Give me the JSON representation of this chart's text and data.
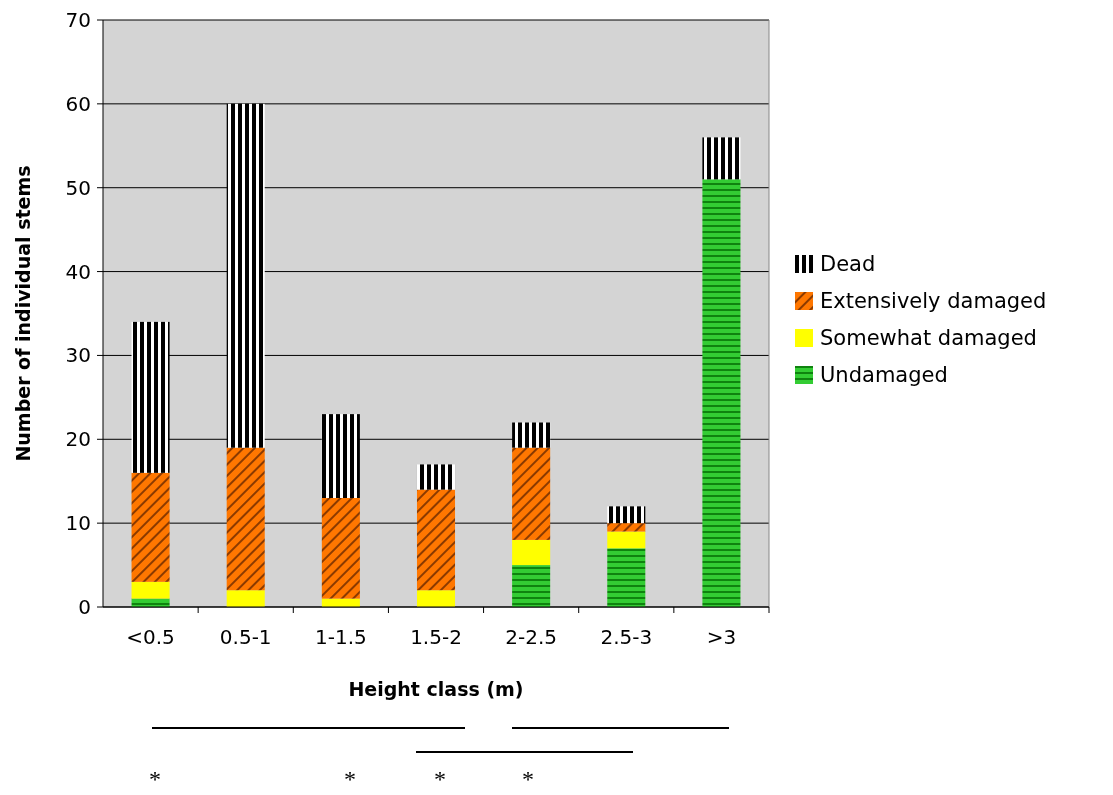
{
  "chart_data": {
    "type": "bar",
    "stacked": true,
    "xlabel": "Height class (m)",
    "ylabel": "Number of individual stems",
    "categories": [
      "<0.5",
      "0.5-1",
      "1-1.5",
      "1.5-2",
      "2-2.5",
      "2.5-3",
      ">3"
    ],
    "series": [
      {
        "name": "Undamaged",
        "color": "#33cc33",
        "values": [
          1,
          0,
          0,
          0,
          5,
          7,
          51
        ]
      },
      {
        "name": "Somewhat damaged",
        "color": "#ffff00",
        "values": [
          2,
          2,
          1,
          2,
          3,
          2,
          0
        ]
      },
      {
        "name": "Extensively damaged",
        "color": "#ff7700",
        "values": [
          13,
          17,
          12,
          12,
          11,
          1,
          0
        ]
      },
      {
        "name": "Dead",
        "color": "#000000",
        "values": [
          18,
          41,
          10,
          3,
          3,
          2,
          5
        ]
      }
    ],
    "ylim": [
      0,
      70
    ],
    "yticks": [
      0,
      10,
      20,
      30,
      40,
      50,
      60,
      70
    ],
    "grid": "y",
    "legend": "right",
    "annotations": [
      "*",
      "*",
      "*",
      "*"
    ]
  }
}
